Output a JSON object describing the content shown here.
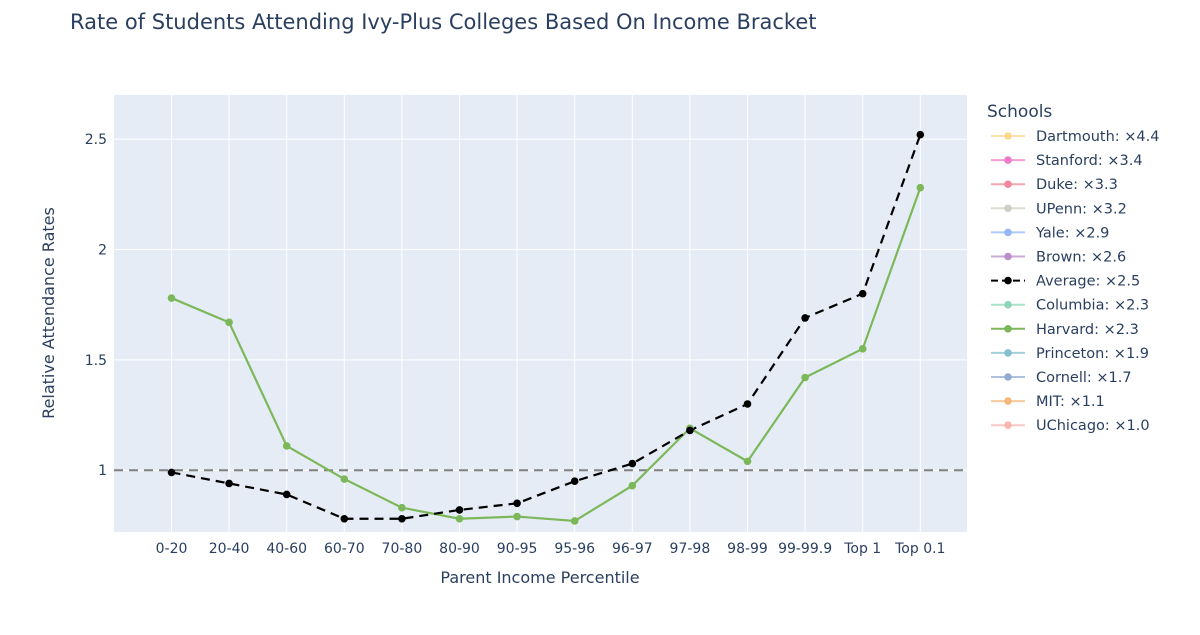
{
  "chart_data": {
    "type": "line",
    "title": "Rate of Students Attending Ivy-Plus Colleges Based On Income Bracket",
    "xlabel": "Parent Income Percentile",
    "ylabel": "Relative Attendance Rates",
    "categories": [
      "0-20",
      "20-40",
      "40-60",
      "60-70",
      "70-80",
      "80-90",
      "90-95",
      "95-96",
      "96-97",
      "97-98",
      "98-99",
      "99-99.9",
      "Top 1",
      "Top 0.1"
    ],
    "ylim": [
      0.72,
      2.7
    ],
    "yticks": [
      {
        "value": 1,
        "label": "1"
      },
      {
        "value": 1.5,
        "label": "1.5"
      },
      {
        "value": 2,
        "label": "2"
      },
      {
        "value": 2.5,
        "label": "2.5"
      }
    ],
    "grid": true,
    "reference_line": {
      "value": 1,
      "style": "dashed",
      "color": "#808080"
    },
    "legend": {
      "title": "Schools",
      "position": "right",
      "entries": [
        {
          "label": "Dartmouth: ×4.4",
          "color": "#fdd88a",
          "active": false
        },
        {
          "label": "Stanford: ×3.4",
          "color": "#f07cc8",
          "active": false
        },
        {
          "label": "Duke: ×3.3",
          "color": "#f5889c",
          "active": false
        },
        {
          "label": "UPenn: ×3.2",
          "color": "#cfcfc6",
          "active": false
        },
        {
          "label": "Yale: ×2.9",
          "color": "#93b8f5",
          "active": false
        },
        {
          "label": "Brown: ×2.6",
          "color": "#b98ec9",
          "active": false
        },
        {
          "label": "Average: ×2.5",
          "color": "#000000",
          "active": true,
          "dashed": true
        },
        {
          "label": "Columbia: ×2.3",
          "color": "#8fd6b8",
          "active": false
        },
        {
          "label": "Harvard: ×2.3",
          "color": "#7cb85a",
          "active": true,
          "dashed": false
        },
        {
          "label": "Princeton: ×1.9",
          "color": "#85bfd0",
          "active": false
        },
        {
          "label": "Cornell: ×1.7",
          "color": "#94acd4",
          "active": false
        },
        {
          "label": "MIT: ×1.1",
          "color": "#f5b87a",
          "active": false
        },
        {
          "label": "UChicago: ×1.0",
          "color": "#f8b6b0",
          "active": false
        }
      ]
    },
    "series": [
      {
        "name": "Average: ×2.5",
        "color": "#000000",
        "dashed": true,
        "values": [
          0.99,
          0.94,
          0.89,
          0.78,
          0.78,
          0.82,
          0.85,
          0.95,
          1.03,
          1.18,
          1.3,
          1.69,
          1.8,
          2.52
        ]
      },
      {
        "name": "Harvard: ×2.3",
        "color": "#7cb85a",
        "dashed": false,
        "values": [
          1.78,
          1.67,
          1.11,
          0.96,
          0.83,
          0.78,
          0.79,
          0.77,
          0.93,
          1.19,
          1.04,
          1.42,
          1.55,
          2.28
        ]
      }
    ]
  }
}
